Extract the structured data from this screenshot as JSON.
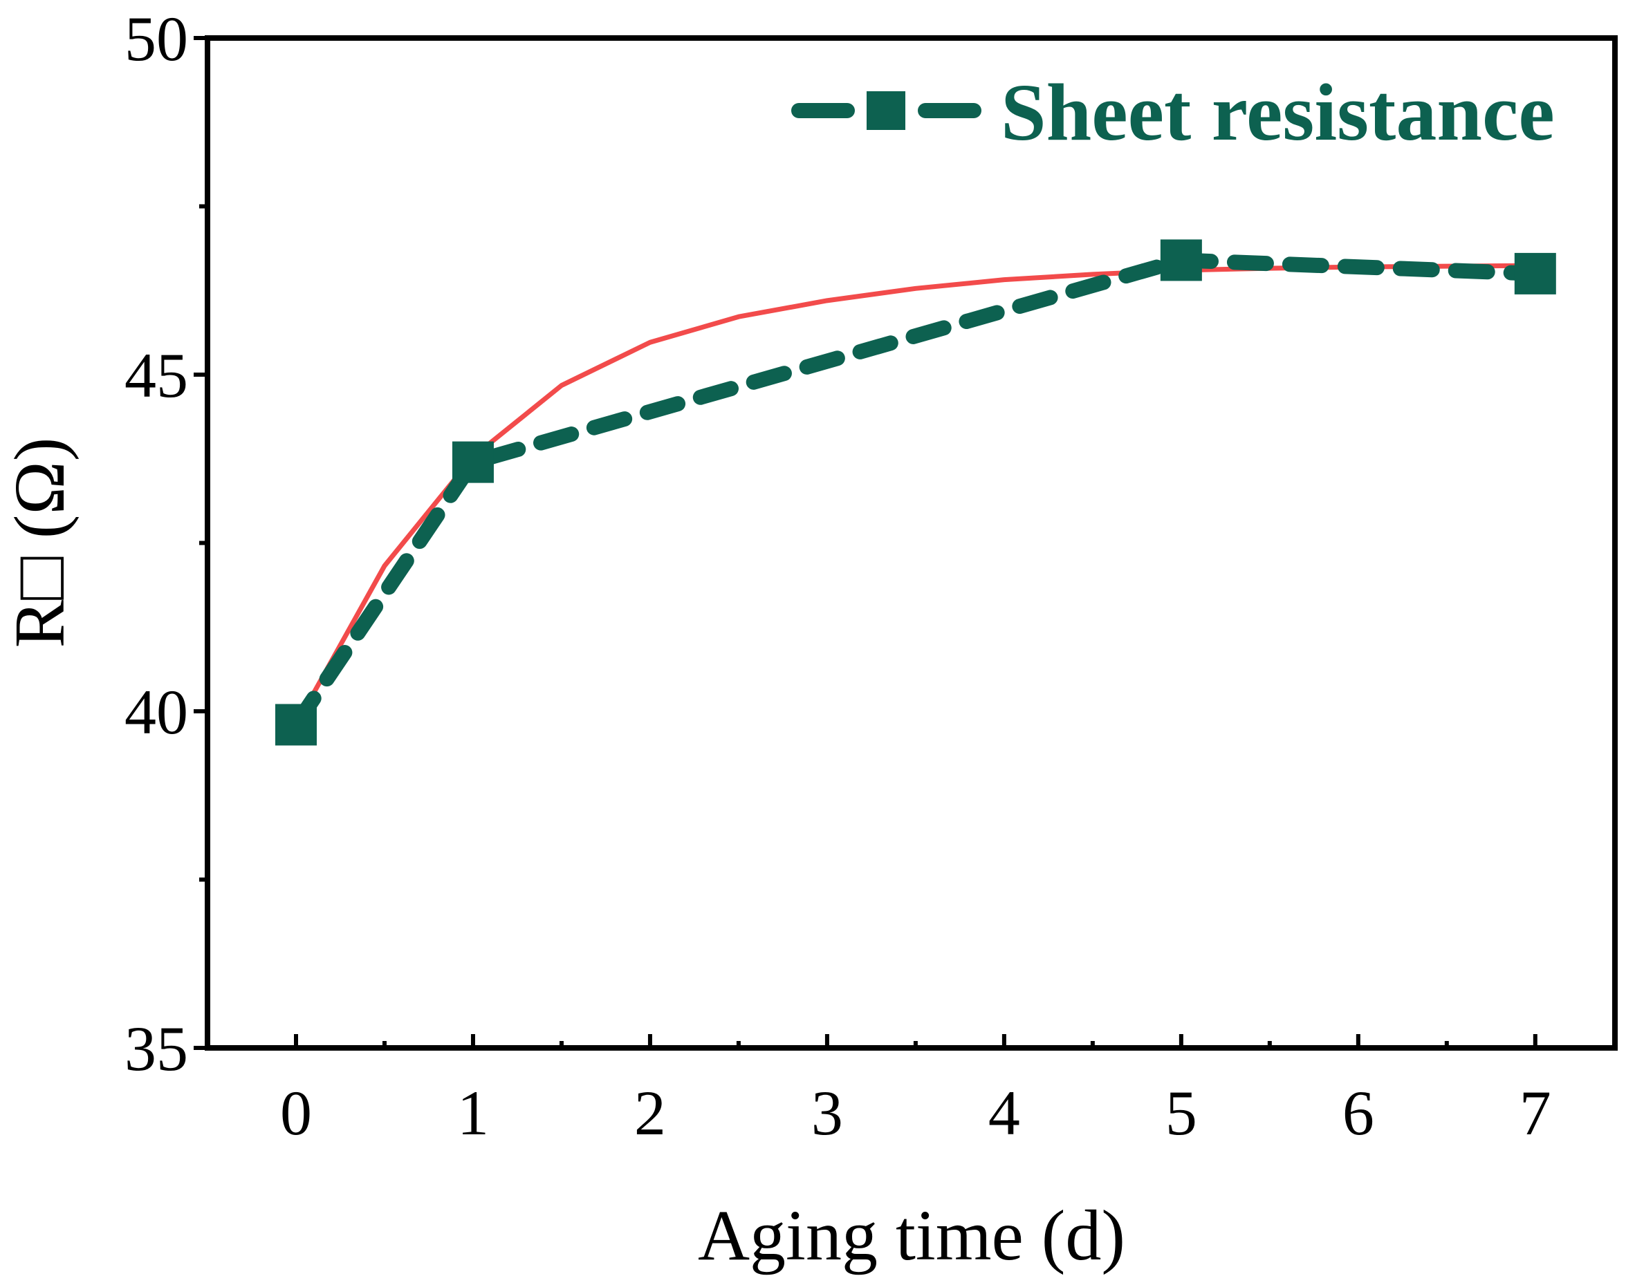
{
  "chart_data": {
    "type": "line",
    "xlabel": "Aging time (d)",
    "ylabel": "R□ (Ω)",
    "xlim": [
      -0.5,
      7.45
    ],
    "ylim": [
      35,
      50
    ],
    "xticks": [
      0,
      1,
      2,
      3,
      4,
      5,
      6,
      7
    ],
    "xtick_labels": [
      "0",
      "1",
      "2",
      "3",
      "4",
      "5",
      "6",
      "7"
    ],
    "yticks": [
      35,
      40,
      45,
      50
    ],
    "ytick_labels": [
      "35",
      "40",
      "45",
      "50"
    ],
    "grid": false,
    "legend": {
      "position": "top-right"
    },
    "series": [
      {
        "name": "Sheet resistance",
        "style": "dashed-square-markers",
        "color": "#0d6150",
        "x": [
          0,
          1,
          5,
          7
        ],
        "y": [
          39.8,
          43.7,
          46.7,
          46.5
        ]
      },
      {
        "style": "solid-fit-curve",
        "color": "#f24b4b",
        "x": [
          0,
          0.5,
          1,
          1.5,
          2,
          2.5,
          3,
          3.5,
          4,
          4.5,
          5,
          5.5,
          6,
          6.5,
          7
        ],
        "y": [
          39.8,
          42.16,
          43.78,
          44.84,
          45.48,
          45.86,
          46.1,
          46.28,
          46.41,
          46.49,
          46.55,
          46.58,
          46.6,
          46.61,
          46.62
        ]
      }
    ]
  }
}
